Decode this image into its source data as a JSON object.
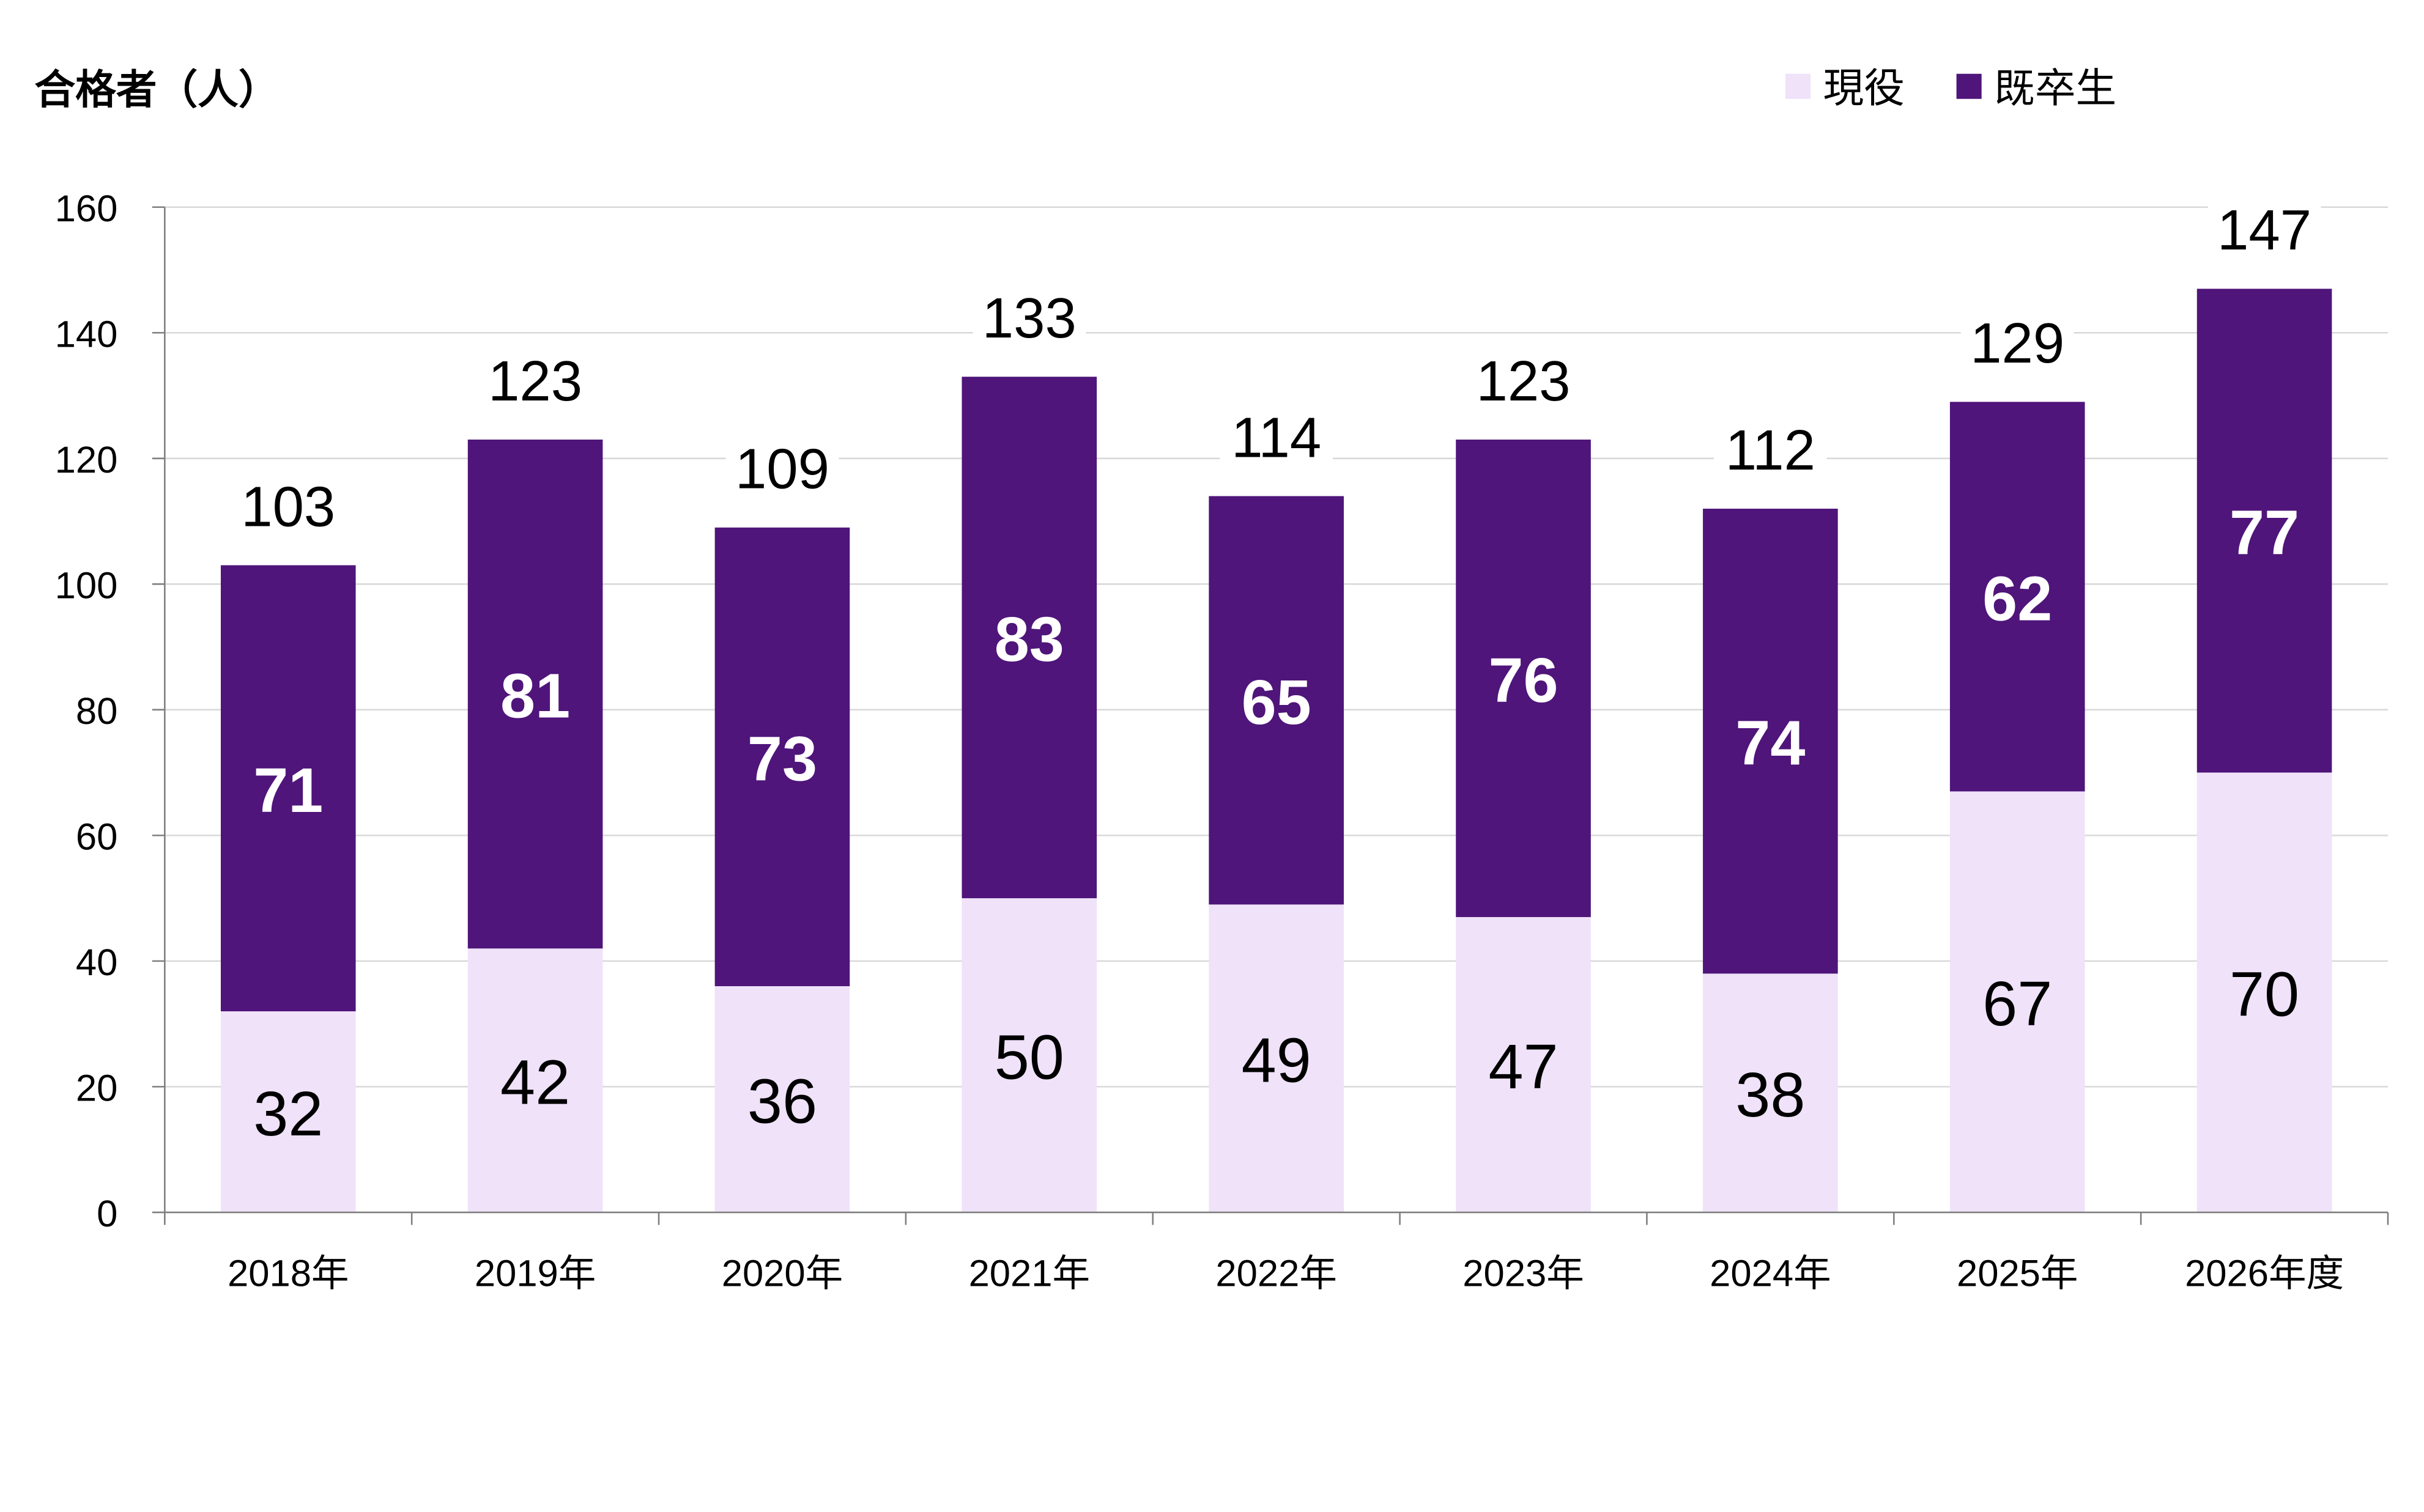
{
  "chart_data": {
    "type": "bar",
    "stacked": true,
    "ylabel": "合格者（人）",
    "ylim": [
      0,
      160
    ],
    "yticks": [
      0,
      20,
      40,
      60,
      80,
      100,
      120,
      140,
      160
    ],
    "grid": true,
    "legend_position": "top-right",
    "categories": [
      "2018年",
      "2019年",
      "2020年",
      "2021年",
      "2022年",
      "2023年",
      "2024年",
      "2025年",
      "2026年度"
    ],
    "series": [
      {
        "name": "現役",
        "color": "#EFE2F9",
        "values": [
          32,
          42,
          36,
          50,
          49,
          47,
          38,
          67,
          70
        ]
      },
      {
        "name": "既卒生",
        "color": "#4F157A",
        "values": [
          71,
          81,
          73,
          83,
          65,
          76,
          74,
          62,
          77
        ]
      }
    ],
    "totals": [
      103,
      123,
      109,
      133,
      114,
      123,
      112,
      129,
      147
    ]
  }
}
